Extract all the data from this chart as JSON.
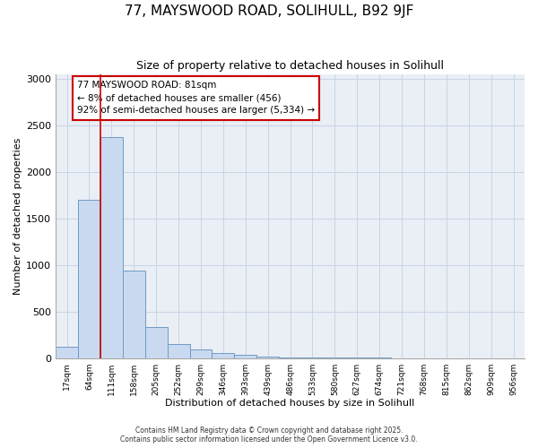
{
  "title1": "77, MAYSWOOD ROAD, SOLIHULL, B92 9JF",
  "title2": "Size of property relative to detached houses in Solihull",
  "xlabel": "Distribution of detached houses by size in Solihull",
  "ylabel": "Number of detached properties",
  "categories": [
    "17sqm",
    "64sqm",
    "111sqm",
    "158sqm",
    "205sqm",
    "252sqm",
    "299sqm",
    "346sqm",
    "393sqm",
    "439sqm",
    "486sqm",
    "533sqm",
    "580sqm",
    "627sqm",
    "674sqm",
    "721sqm",
    "768sqm",
    "815sqm",
    "862sqm",
    "909sqm",
    "956sqm"
  ],
  "values": [
    120,
    1700,
    2380,
    940,
    330,
    150,
    90,
    55,
    35,
    15,
    8,
    4,
    2,
    1,
    1,
    0,
    0,
    0,
    0,
    0,
    0
  ],
  "bar_color": "#c9d9ef",
  "bar_edge_color": "#6e9bc5",
  "bar_linewidth": 0.7,
  "grid_color": "#c8d4e6",
  "bg_color": "#eaeef5",
  "red_line_color": "#cc0000",
  "annotation_text": "77 MAYSWOOD ROAD: 81sqm\n← 8% of detached houses are smaller (456)\n92% of semi-detached houses are larger (5,334) →",
  "annotation_box_color": "#ffffff",
  "annotation_border_color": "#cc0000",
  "ylim": [
    0,
    3050
  ],
  "yticks": [
    0,
    500,
    1000,
    1500,
    2000,
    2500,
    3000
  ],
  "footnote1": "Contains HM Land Registry data © Crown copyright and database right 2025.",
  "footnote2": "Contains public sector information licensed under the Open Government Licence v3.0."
}
